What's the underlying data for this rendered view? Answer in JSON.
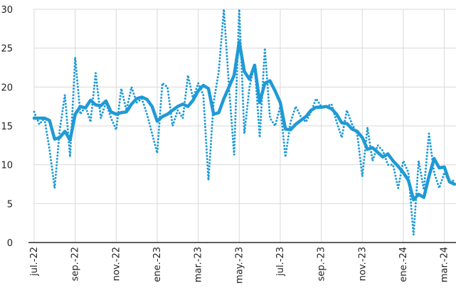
{
  "chart_data": {
    "type": "line",
    "categories": [
      "jul.-22",
      null,
      null,
      null,
      null,
      null,
      null,
      null,
      "sep.-22",
      null,
      null,
      null,
      null,
      null,
      null,
      null,
      "nov.-22",
      null,
      null,
      null,
      null,
      null,
      null,
      null,
      "ene.-23",
      null,
      null,
      null,
      null,
      null,
      null,
      null,
      "mar.-23",
      null,
      null,
      null,
      null,
      null,
      null,
      null,
      "may.-23",
      null,
      null,
      null,
      null,
      null,
      null,
      null,
      "jul.-23",
      null,
      null,
      null,
      null,
      null,
      null,
      null,
      "sep.-23",
      null,
      null,
      null,
      null,
      null,
      null,
      null,
      "nov.-23",
      null,
      null,
      null,
      null,
      null,
      null,
      null,
      "ene.-24",
      null,
      null,
      null,
      null,
      null,
      null,
      null,
      "mar.-24",
      null,
      null
    ],
    "series": [
      {
        "color": "#1f9ad6",
        "style": "dotted",
        "values": [
          16.8,
          15.2,
          16,
          12,
          7,
          14.5,
          19,
          11,
          23.8,
          16.5,
          17.5,
          15.5,
          21.8,
          16,
          18,
          16,
          14.5,
          19.8,
          17,
          20,
          18,
          18.5,
          16.5,
          14,
          11.5,
          20.5,
          20,
          15,
          17,
          16,
          21.5,
          18.5,
          20.5,
          19,
          8,
          18,
          22,
          30,
          20,
          11.3,
          30,
          14,
          20,
          23,
          13.5,
          25,
          16,
          15,
          17.5,
          11,
          15.5,
          17.5,
          16.2,
          15.5,
          16.8,
          18.5,
          17.5,
          17.5,
          17.8,
          15.5,
          13.5,
          17,
          15.2,
          14,
          8.5,
          14.8,
          10.5,
          12.5,
          11.8,
          10,
          10,
          7,
          10.5,
          9,
          1,
          10.5,
          6.8,
          14,
          9,
          7,
          9,
          7.8,
          8
        ]
      },
      {
        "color": "#1f9ad6",
        "style": "solid",
        "values": [
          16,
          16,
          16,
          15.7,
          13.3,
          13.5,
          14.3,
          13.2,
          16.5,
          17.5,
          17.3,
          18.3,
          17.7,
          17.6,
          18.2,
          16.8,
          16.5,
          16.7,
          16.8,
          17.8,
          18.5,
          18.7,
          18.4,
          17.5,
          15.6,
          16.2,
          16.5,
          17,
          17.5,
          17.8,
          17.5,
          18.3,
          19.5,
          20.2,
          19.8,
          16.5,
          16.7,
          18.5,
          20,
          21.5,
          25.8,
          22,
          21,
          22.8,
          18,
          20.5,
          20.8,
          19.5,
          18,
          14.6,
          14.5,
          15.2,
          15.7,
          16.2,
          17,
          17.4,
          17.4,
          17.5,
          17.2,
          16.5,
          15.4,
          15.3,
          14.6,
          14.3,
          13.5,
          12,
          12.2,
          11.6,
          11,
          11.4,
          10.5,
          9.8,
          9,
          8,
          5.5,
          6.2,
          5.8,
          8.5,
          10.8,
          9.6,
          9.7,
          7.8,
          7.5
        ]
      }
    ],
    "ylim": [
      0,
      30
    ],
    "yticks": [
      0,
      5,
      10,
      15,
      20,
      25,
      30
    ],
    "grid": true
  }
}
